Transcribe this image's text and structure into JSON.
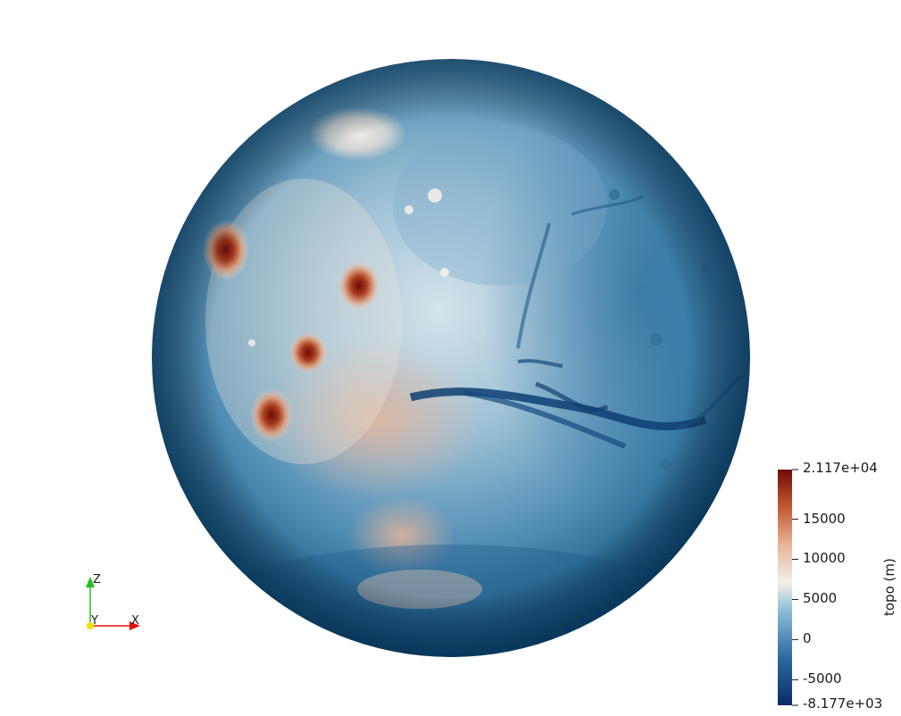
{
  "scene": {
    "object": "mars-topography-sphere",
    "background": "#ffffff"
  },
  "colorbar": {
    "title": "topo (m)",
    "max_label": "2.117e+04",
    "min_label": "-8.177e+03",
    "range": [
      -8177,
      21170
    ],
    "ticks": [
      {
        "value": 15000,
        "label": "15000"
      },
      {
        "value": 10000,
        "label": "10000"
      },
      {
        "value": 5000,
        "label": "5000"
      },
      {
        "value": 0,
        "label": "0"
      },
      {
        "value": -5000,
        "label": "-5000"
      }
    ],
    "colors": [
      "#0a2a6b",
      "#2c6aa0",
      "#8cbcd8",
      "#f2efe9",
      "#e6b59a",
      "#c0552c",
      "#6e0b08"
    ]
  },
  "axes": {
    "z_label": "Z",
    "y_label": "Y",
    "x_label": "X",
    "x_color": "#e11010",
    "y_color": "#f0e000",
    "z_color": "#22c022"
  }
}
